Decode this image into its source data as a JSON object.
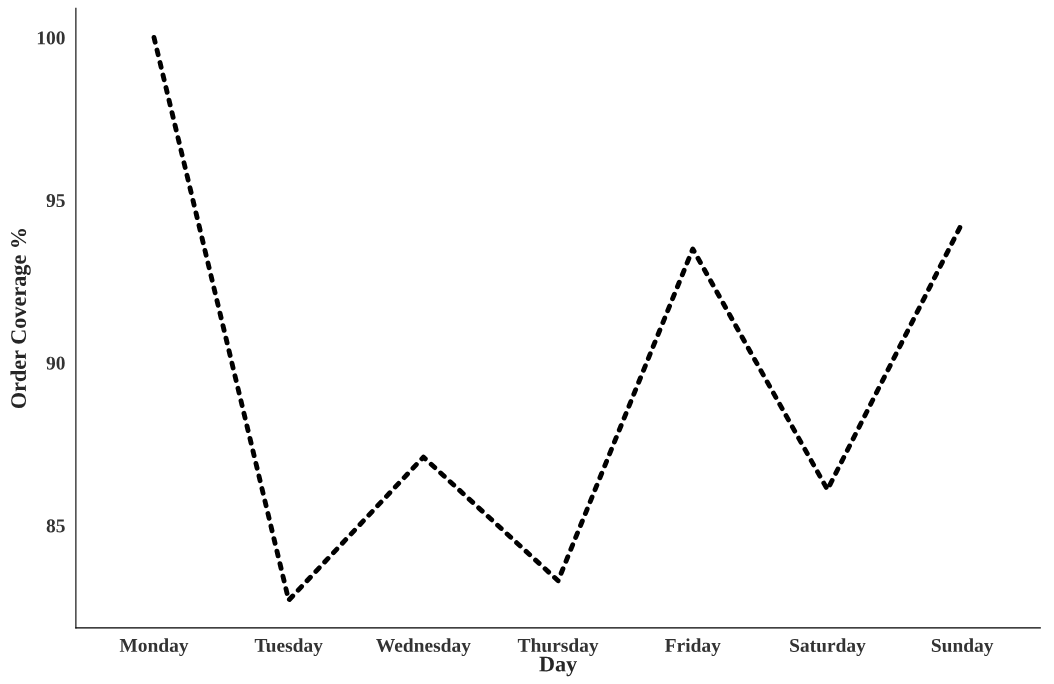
{
  "chart_data": {
    "type": "line",
    "xlabel": "Day",
    "ylabel": "Order Coverage %",
    "categories": [
      "Monday",
      "Tuesday",
      "Wednesday",
      "Thursday",
      "Friday",
      "Saturday",
      "Sunday"
    ],
    "values": [
      100,
      82.7,
      87.1,
      83.3,
      93.5,
      86.1,
      94.3
    ],
    "color": "#000000",
    "line_style": "dotted",
    "ylim": [
      81.85,
      100.9
    ],
    "yticks": [
      85,
      90,
      95,
      100
    ],
    "grid": false
  }
}
